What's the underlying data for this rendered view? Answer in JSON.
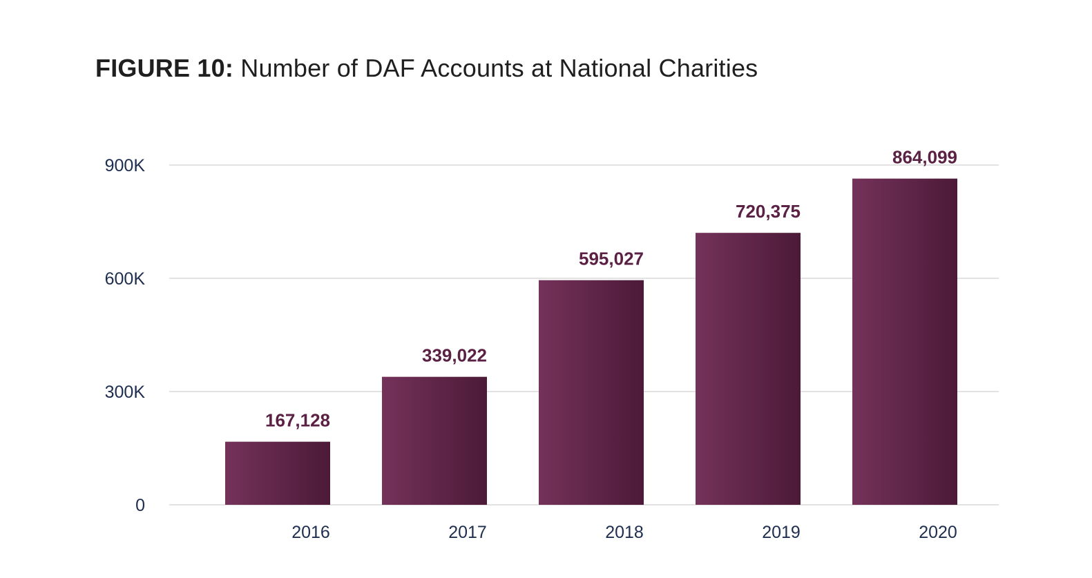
{
  "figure": {
    "label": "FIGURE 10:",
    "title": "Number of DAF Accounts at National Charities"
  },
  "chart_data": {
    "type": "bar",
    "title": "FIGURE 10: Number of DAF Accounts at National Charities",
    "categories": [
      "2016",
      "2017",
      "2018",
      "2019",
      "2020"
    ],
    "values": [
      167128,
      339022,
      595027,
      720375,
      864099
    ],
    "value_labels": [
      "167,128",
      "339,022",
      "595,027",
      "720,375",
      "864,099"
    ],
    "xlabel": "",
    "ylabel": "",
    "ylim": [
      0,
      900000
    ],
    "yticks": [
      0,
      300000,
      600000,
      900000
    ],
    "ytick_labels": [
      "0",
      "300K",
      "600K",
      "900K"
    ],
    "grid": true,
    "legend": "none",
    "colors": {
      "bar_light": "#74325a",
      "bar_dark": "#4c1a38",
      "value_label": "#5a2144",
      "tick_label": "#1e2e4f",
      "gridline": "#d9d9d9"
    }
  }
}
